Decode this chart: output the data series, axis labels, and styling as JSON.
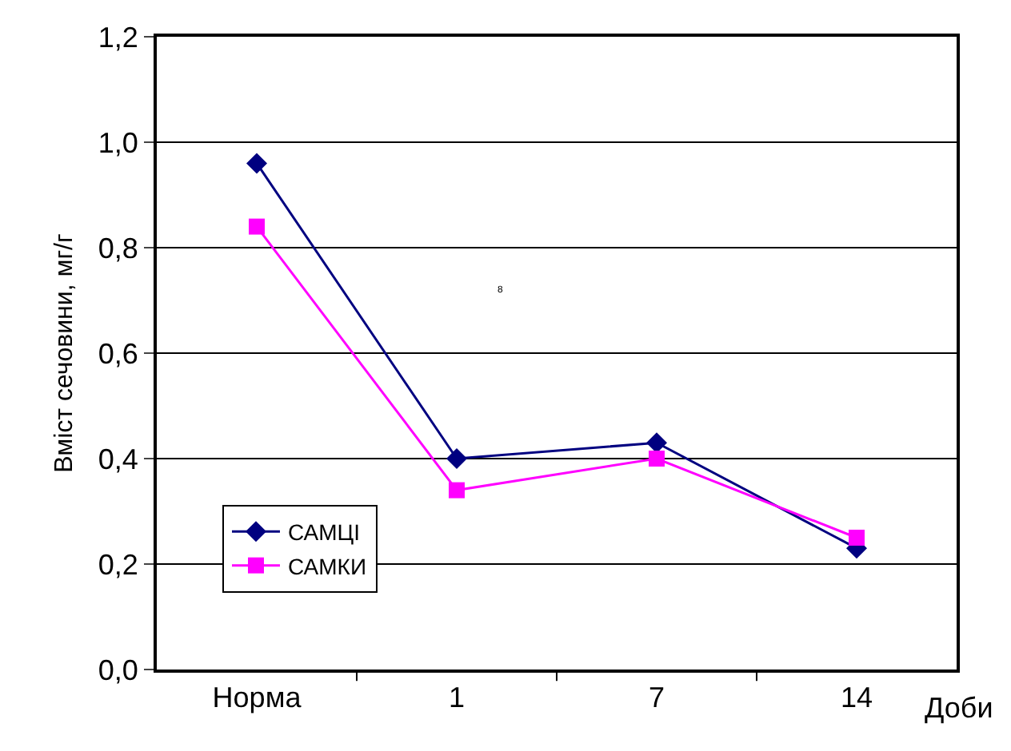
{
  "chart_data": {
    "type": "line",
    "xlabel": "Доби",
    "ylabel": "Вміст сечовини, мг/г",
    "categories": [
      "Норма",
      "1",
      "7",
      "14"
    ],
    "series": [
      {
        "name": "САМЦІ",
        "color": "#000080",
        "marker": "diamond",
        "values": [
          0.96,
          0.4,
          0.43,
          0.23
        ]
      },
      {
        "name": "САМКИ",
        "color": "#ff00ff",
        "marker": "square",
        "values": [
          0.84,
          0.34,
          0.4,
          0.25
        ]
      }
    ],
    "ylim": [
      0,
      1.2
    ],
    "yticks": [
      {
        "value": 0,
        "label": "0,0"
      },
      {
        "value": 0.2,
        "label": "0,2"
      },
      {
        "value": 0.4,
        "label": "0,4"
      },
      {
        "value": 0.6,
        "label": "0,6"
      },
      {
        "value": 0.8,
        "label": "0,8"
      },
      {
        "value": 1.0,
        "label": "1,0"
      },
      {
        "value": 1.2,
        "label": "1,2"
      }
    ],
    "grid": "y",
    "legend": "bottom left",
    "line_style": "solid",
    "annotations": [
      "8"
    ]
  }
}
